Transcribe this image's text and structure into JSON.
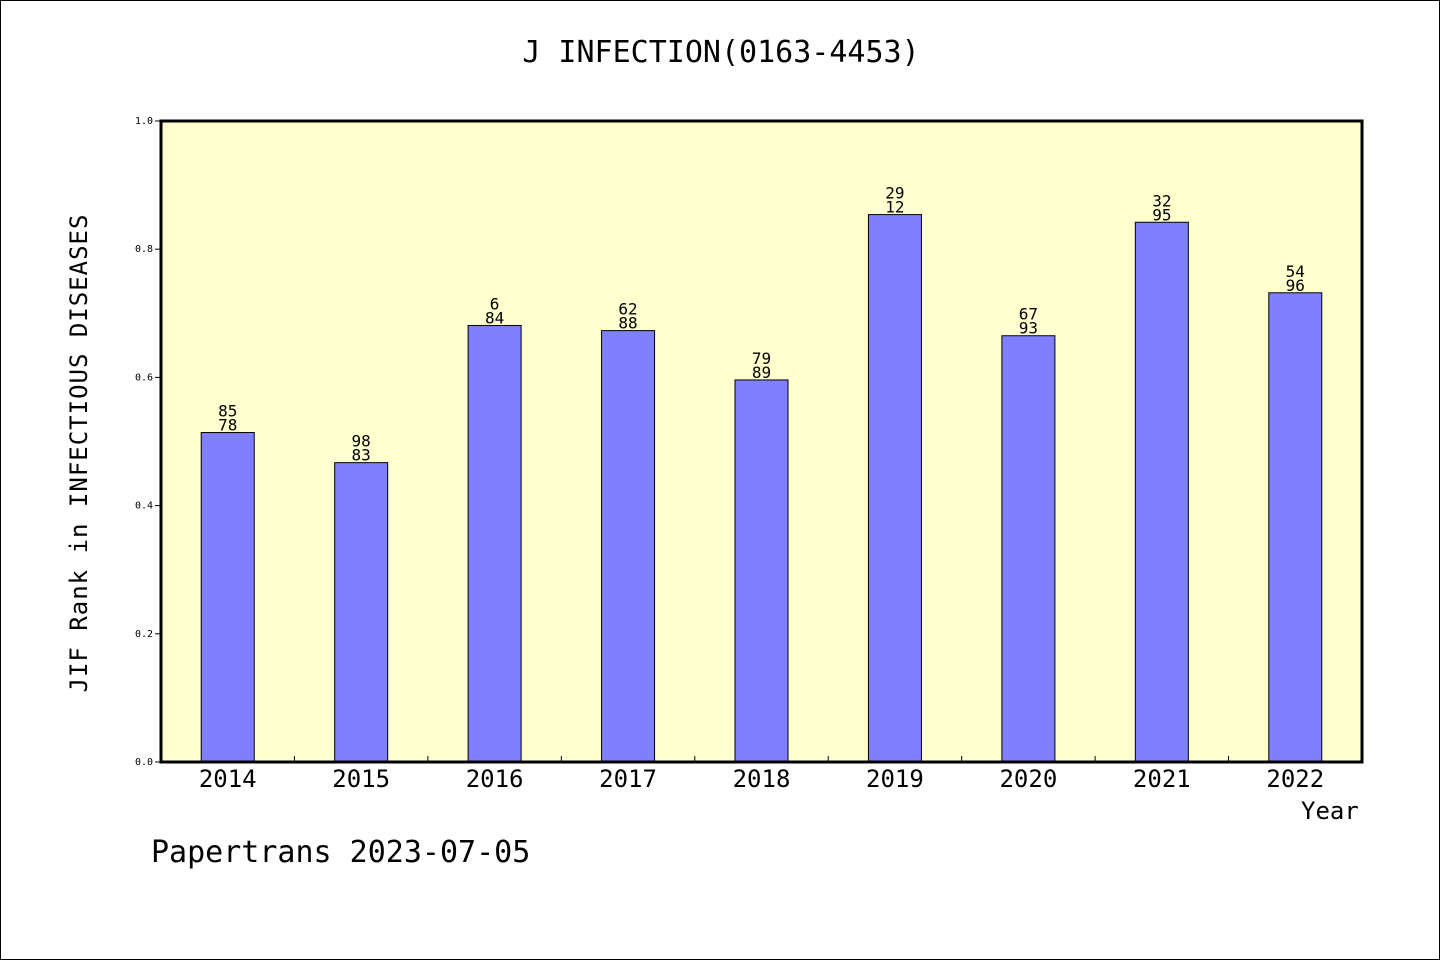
{
  "chart_data": {
    "type": "bar",
    "title": "J INFECTION(0163-4453)",
    "xlabel": "Year",
    "ylabel": "JIF Rank in INFECTIOUS DISEASES",
    "ylim": [
      0,
      1.0
    ],
    "yticks": [
      "0.0",
      "0.2",
      "0.4",
      "0.6",
      "0.8",
      "1.0"
    ],
    "categories": [
      "2014",
      "2015",
      "2016",
      "2017",
      "2018",
      "2019",
      "2020",
      "2021",
      "2022"
    ],
    "values": [
      0.514,
      0.467,
      0.681,
      0.673,
      0.596,
      0.854,
      0.665,
      0.842,
      0.732
    ],
    "labels": [
      [
        "85",
        "78"
      ],
      [
        "98",
        "83"
      ],
      [
        "6",
        "84"
      ],
      [
        "62",
        "88"
      ],
      [
        "79",
        "89"
      ],
      [
        "29",
        "12"
      ],
      [
        "67",
        "93"
      ],
      [
        "32",
        "95"
      ],
      [
        "54",
        "96"
      ]
    ],
    "colors": {
      "bar": "#8080ff",
      "plot_background": "#ffffd0",
      "border": "#000000"
    },
    "grid": false,
    "legend": "none"
  },
  "footer": "Papertrans 2023-07-05"
}
